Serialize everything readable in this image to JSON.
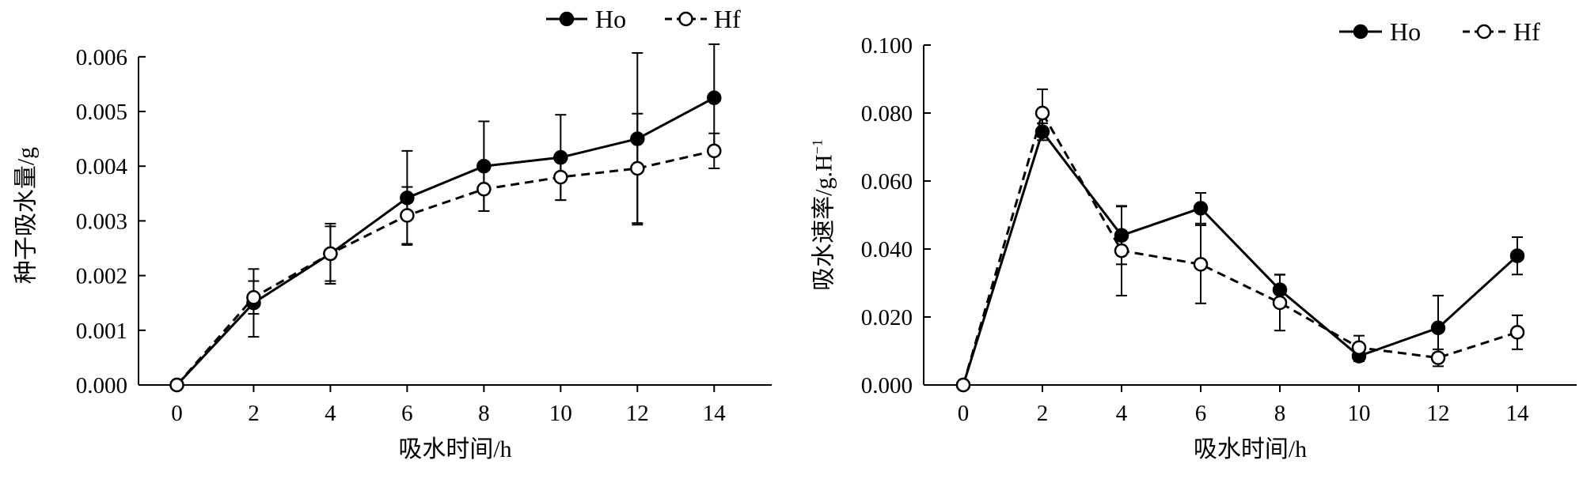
{
  "chart_data": [
    {
      "type": "line",
      "x": [
        0,
        2,
        4,
        6,
        8,
        10,
        12,
        14
      ],
      "xlim": [
        -1,
        15.5
      ],
      "xticks": [
        "0",
        "2",
        "4",
        "6",
        "8",
        "10",
        "12",
        "14"
      ],
      "ylim": [
        0,
        0.0062
      ],
      "yticks": [
        "0.000",
        "0.001",
        "0.002",
        "0.003",
        "0.004",
        "0.005",
        "0.006"
      ],
      "ytick_values": [
        0,
        0.001,
        0.002,
        0.003,
        0.004,
        0.005,
        0.006
      ],
      "xlabel": "吸水时间/h",
      "ylabel": "种子吸水量/g",
      "legend_position": "top-right",
      "grid": false,
      "series": [
        {
          "name": "Ho",
          "marker": "filled-circle",
          "line": "solid",
          "values": [
            0.0,
            0.0015,
            0.0024,
            0.00342,
            0.004,
            0.00416,
            0.0045,
            0.00525
          ],
          "error": [
            0,
            0.00062,
            0.00055,
            0.00086,
            0.00082,
            0.00078,
            0.00157,
            0.00098
          ]
        },
        {
          "name": "Hf",
          "marker": "open-circle",
          "line": "dashed",
          "values": [
            0.0,
            0.0016,
            0.0024,
            0.0031,
            0.00358,
            0.0038,
            0.00396,
            0.00428
          ],
          "error": [
            0,
            0.0003,
            0.0005,
            0.00052,
            0.0004,
            0.00042,
            0.001,
            0.00032
          ]
        }
      ]
    },
    {
      "type": "line",
      "x": [
        0,
        2,
        4,
        6,
        8,
        10,
        12,
        14
      ],
      "xlim": [
        -1,
        15.5
      ],
      "xticks": [
        "0",
        "2",
        "4",
        "6",
        "8",
        "10",
        "12",
        "14"
      ],
      "ylim": [
        0,
        0.1
      ],
      "yticks": [
        "0.000",
        "0.020",
        "0.040",
        "0.060",
        "0.080",
        "0.100"
      ],
      "ytick_values": [
        0,
        0.02,
        0.04,
        0.06,
        0.08,
        0.1
      ],
      "xlabel": "吸水时间/h",
      "ylabel": "吸水速率/g.H",
      "ylabel_superscript": "−1",
      "legend_position": "top-right",
      "grid": false,
      "series": [
        {
          "name": "Ho",
          "marker": "filled-circle",
          "line": "solid",
          "values": [
            0.0,
            0.0745,
            0.044,
            0.052,
            0.028,
            0.0085,
            0.0168,
            0.038
          ],
          "error": [
            0,
            0.0025,
            0.0085,
            0.0045,
            0.0045,
            0.0015,
            0.0095,
            0.0055
          ]
        },
        {
          "name": "Hf",
          "marker": "open-circle",
          "line": "dashed",
          "values": [
            0.0,
            0.08,
            0.0395,
            0.0355,
            0.0242,
            0.011,
            0.008,
            0.0155
          ],
          "error": [
            0,
            0.007,
            0.0132,
            0.0115,
            0.0082,
            0.0035,
            0.0025,
            0.005
          ]
        }
      ]
    }
  ]
}
